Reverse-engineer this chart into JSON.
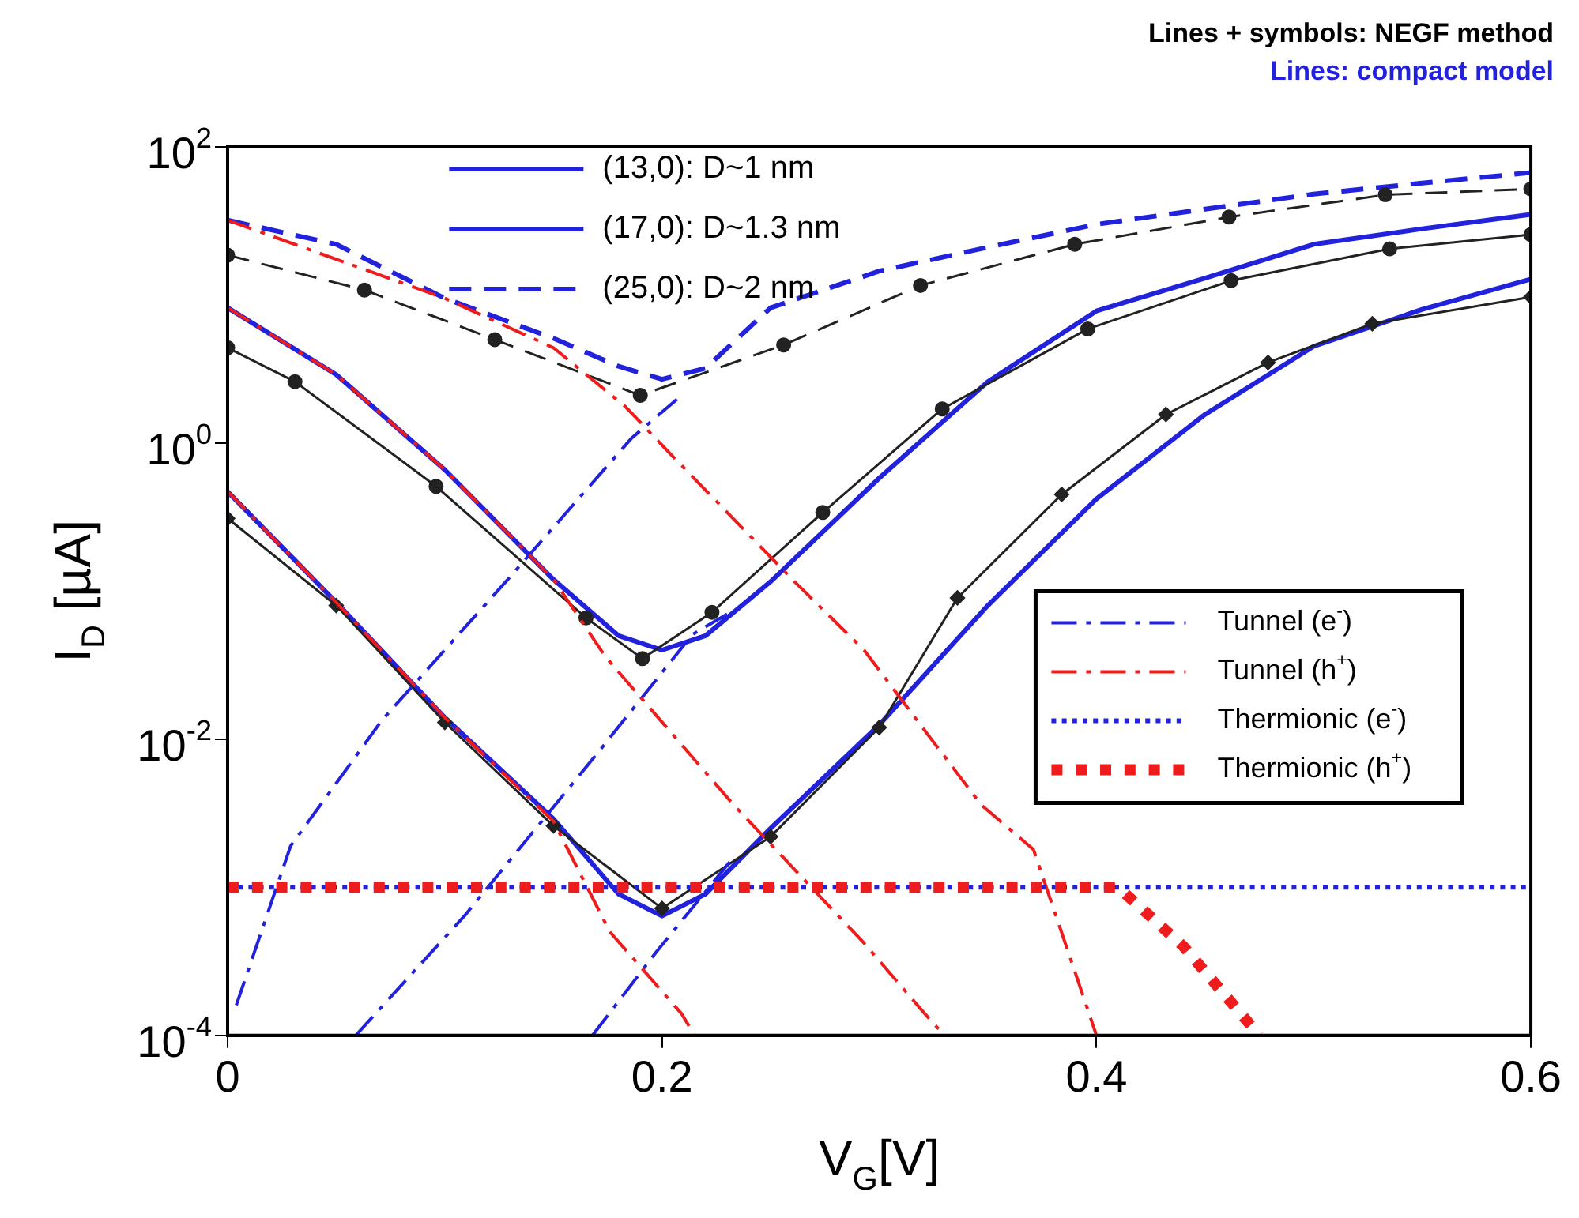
{
  "chart_data": {
    "type": "line",
    "xlabel": "V$_{G}$[V]",
    "ylabel": "I$_{D}$ [µA]",
    "log": "y",
    "grid": false,
    "legend": "top left",
    "xlim": [
      0,
      0.6
    ],
    "xticks": [
      0,
      0.2,
      0.4,
      0.6
    ],
    "ylim": [
      0.0001,
      100
    ],
    "yticks": [
      {
        "value": 0.0001,
        "label": "10$^{-4}$"
      },
      {
        "value": 0.01,
        "label": "10$^{-2}$"
      },
      {
        "value": 1,
        "label": "10$^{0}$"
      },
      {
        "value": 100,
        "label": "10$^{2}$"
      }
    ],
    "annotations": [
      "Lines + symbols: NEGF method",
      "Lines: compact model"
    ],
    "series": [
      {
        "name": "(13,0): D~1 nm",
        "color": "#2222dd",
        "line_style": "solid",
        "marker": "none",
        "x": [
          0,
          0.05,
          0.1,
          0.15,
          0.18,
          0.2,
          0.22,
          0.25,
          0.3,
          0.35,
          0.4,
          0.45,
          0.5,
          0.55,
          0.6
        ],
        "values": [
          0.47,
          0.084,
          0.014,
          0.0029,
          0.0009,
          0.00064,
          0.0009,
          0.0025,
          0.0125,
          0.08,
          0.42,
          1.56,
          4.5,
          8,
          12.8
        ]
      },
      {
        "name": "(17,0): D~1.3 nm",
        "color": "#2222dd",
        "line_style": "solid",
        "marker": "none",
        "x": [
          0,
          0.05,
          0.1,
          0.15,
          0.18,
          0.2,
          0.22,
          0.25,
          0.3,
          0.35,
          0.4,
          0.45,
          0.5,
          0.55,
          0.6
        ],
        "values": [
          8.2,
          2.9,
          0.66,
          0.12,
          0.05,
          0.04,
          0.05,
          0.116,
          0.58,
          2.6,
          7.8,
          13,
          22,
          28,
          35
        ]
      },
      {
        "name": "(25,0): D~2 nm",
        "color": "#2222dd",
        "line_style": "dashed",
        "marker": "none",
        "x": [
          0,
          0.05,
          0.1,
          0.15,
          0.18,
          0.2,
          0.22,
          0.25,
          0.3,
          0.35,
          0.4,
          0.45,
          0.5,
          0.55,
          0.6
        ],
        "values": [
          32,
          22,
          9.5,
          5.1,
          3.3,
          2.7,
          3.2,
          8.2,
          14.5,
          21,
          30,
          38,
          48,
          57,
          67
        ]
      },
      {
        "color": "#222222",
        "line_style": "solid",
        "marker": "diamond",
        "x": [
          0,
          0.05,
          0.1,
          0.15,
          0.2,
          0.25,
          0.3,
          0.336,
          0.384,
          0.432,
          0.479,
          0.527,
          0.6
        ],
        "values": [
          0.31,
          0.08,
          0.013,
          0.0026,
          0.00072,
          0.0022,
          0.012,
          0.09,
          0.45,
          1.56,
          3.5,
          6.4,
          9.7
        ]
      },
      {
        "color": "#222222",
        "line_style": "solid",
        "marker": "circle",
        "x": [
          0,
          0.031,
          0.096,
          0.165,
          0.191,
          0.223,
          0.274,
          0.329,
          0.396,
          0.462,
          0.535,
          0.6
        ],
        "values": [
          4.4,
          2.6,
          0.51,
          0.066,
          0.035,
          0.072,
          0.34,
          1.7,
          5.9,
          12.5,
          20.5,
          25.6
        ]
      },
      {
        "color": "#222222",
        "line_style": "dashed",
        "marker": "circle",
        "x": [
          0,
          0.063,
          0.123,
          0.19,
          0.256,
          0.319,
          0.39,
          0.461,
          0.533,
          0.6
        ],
        "values": [
          18.6,
          10.8,
          5,
          2.1,
          4.6,
          11.6,
          22,
          33.6,
          47.5,
          52
        ]
      },
      {
        "name": "Tunnel (e$^{-}$)",
        "color": "#2222dd",
        "line_style": "dashdot",
        "marker": "none",
        "x": [
          0.004,
          0.029,
          0.071,
          0.129,
          0.186,
          0.209
        ],
        "values": [
          0.00016,
          0.0019,
          0.0134,
          0.12,
          1.08,
          2.1
        ]
      },
      {
        "color": "#2222dd",
        "line_style": "dashdot",
        "marker": "none",
        "x": [
          0.059,
          0.109,
          0.171,
          0.214,
          0.23
        ],
        "values": [
          0.0001,
          0.00064,
          0.0083,
          0.051,
          0.07
        ]
      },
      {
        "color": "#2222dd",
        "line_style": "dashdot",
        "marker": "none",
        "x": [
          0.168,
          0.197,
          0.233
        ],
        "values": [
          0.0001,
          0.00036,
          0.0016
        ]
      },
      {
        "name": "Tunnel (h$^{+}$)",
        "color": "#ee1c1c",
        "line_style": "dashdot",
        "marker": "none",
        "x": [
          0,
          0.1,
          0.15,
          0.183,
          0.204,
          0.261,
          0.293,
          0.324,
          0.347,
          0.371,
          0.389,
          0.4
        ],
        "values": [
          32,
          9.5,
          4.4,
          1.77,
          0.84,
          0.116,
          0.04,
          0.01,
          0.0036,
          0.0018,
          0.0003,
          0.0001
        ]
      },
      {
        "color": "#ee1c1c",
        "line_style": "dashdot",
        "marker": "none",
        "x": [
          0,
          0.05,
          0.1,
          0.15,
          0.174,
          0.233,
          0.293,
          0.321,
          0.33
        ],
        "values": [
          8.2,
          2.9,
          0.66,
          0.12,
          0.036,
          0.0036,
          0.00042,
          0.00014,
          0.0001
        ]
      },
      {
        "color": "#ee1c1c",
        "line_style": "dashdot",
        "marker": "none",
        "x": [
          0,
          0.05,
          0.1,
          0.15,
          0.176,
          0.209,
          0.215
        ],
        "values": [
          0.47,
          0.084,
          0.014,
          0.0028,
          0.0005,
          0.00014,
          0.0001
        ]
      },
      {
        "name": "Thermionic (e$^{-}$)",
        "color": "#2222dd",
        "line_style": "dotted",
        "marker": "none",
        "x": [
          0,
          0.6
        ],
        "values": [
          0.001,
          0.001
        ]
      },
      {
        "name": "Thermionic (h$^{+}$)",
        "color": "#ee1c1c",
        "line_style": "dotted",
        "marker": "none",
        "x": [
          0,
          0.41,
          0.44,
          0.475
        ],
        "values": [
          0.001,
          0.001,
          0.0004,
          0.0001
        ]
      }
    ]
  }
}
